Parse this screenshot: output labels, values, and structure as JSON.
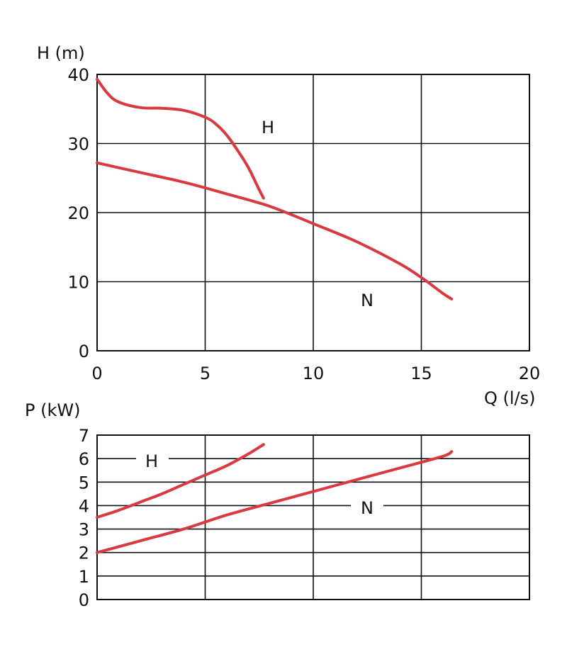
{
  "chart_data": [
    {
      "type": "line",
      "ylabel": "H (m)",
      "xlabel": "",
      "xlim": [
        0,
        20
      ],
      "ylim": [
        0,
        40
      ],
      "x_ticks": [
        "0",
        "5",
        "10",
        "15",
        "20"
      ],
      "y_ticks": [
        "0",
        "10",
        "20",
        "30",
        "40"
      ],
      "grid": true,
      "series": [
        {
          "name": "H",
          "color": "#d93a3f",
          "x": [
            0,
            0.5,
            1,
            2,
            3,
            4,
            5,
            5.5,
            6,
            6.5,
            7,
            7.5,
            7.7
          ],
          "y": [
            39.3,
            37.2,
            36.0,
            35.2,
            35.1,
            34.8,
            33.8,
            32.8,
            31.2,
            29.0,
            26.5,
            23.3,
            22.1
          ]
        },
        {
          "name": "N",
          "color": "#d93a3f",
          "x": [
            0,
            2,
            4,
            6,
            8,
            10,
            12,
            14,
            15,
            16,
            16.4
          ],
          "y": [
            27.2,
            25.8,
            24.4,
            22.7,
            20.9,
            18.4,
            15.8,
            12.6,
            10.6,
            8.3,
            7.5
          ]
        }
      ]
    },
    {
      "type": "line",
      "ylabel": "P (kW)",
      "xlabel": "Q (l/s)",
      "xlim": [
        0,
        20
      ],
      "ylim": [
        0,
        7
      ],
      "y_ticks": [
        "0",
        "1",
        "2",
        "3",
        "4",
        "5",
        "6",
        "7"
      ],
      "grid": true,
      "series": [
        {
          "name": "H",
          "color": "#d93a3f",
          "x": [
            0,
            1,
            2,
            3,
            4,
            5,
            6,
            7,
            7.7
          ],
          "y": [
            3.5,
            3.8,
            4.15,
            4.5,
            4.9,
            5.3,
            5.7,
            6.2,
            6.6
          ]
        },
        {
          "name": "N",
          "color": "#d93a3f",
          "x": [
            0,
            2,
            4,
            6,
            8,
            10,
            12,
            14,
            16,
            16.4
          ],
          "y": [
            2.0,
            2.5,
            3.0,
            3.6,
            4.1,
            4.6,
            5.1,
            5.6,
            6.1,
            6.3
          ]
        }
      ]
    }
  ]
}
